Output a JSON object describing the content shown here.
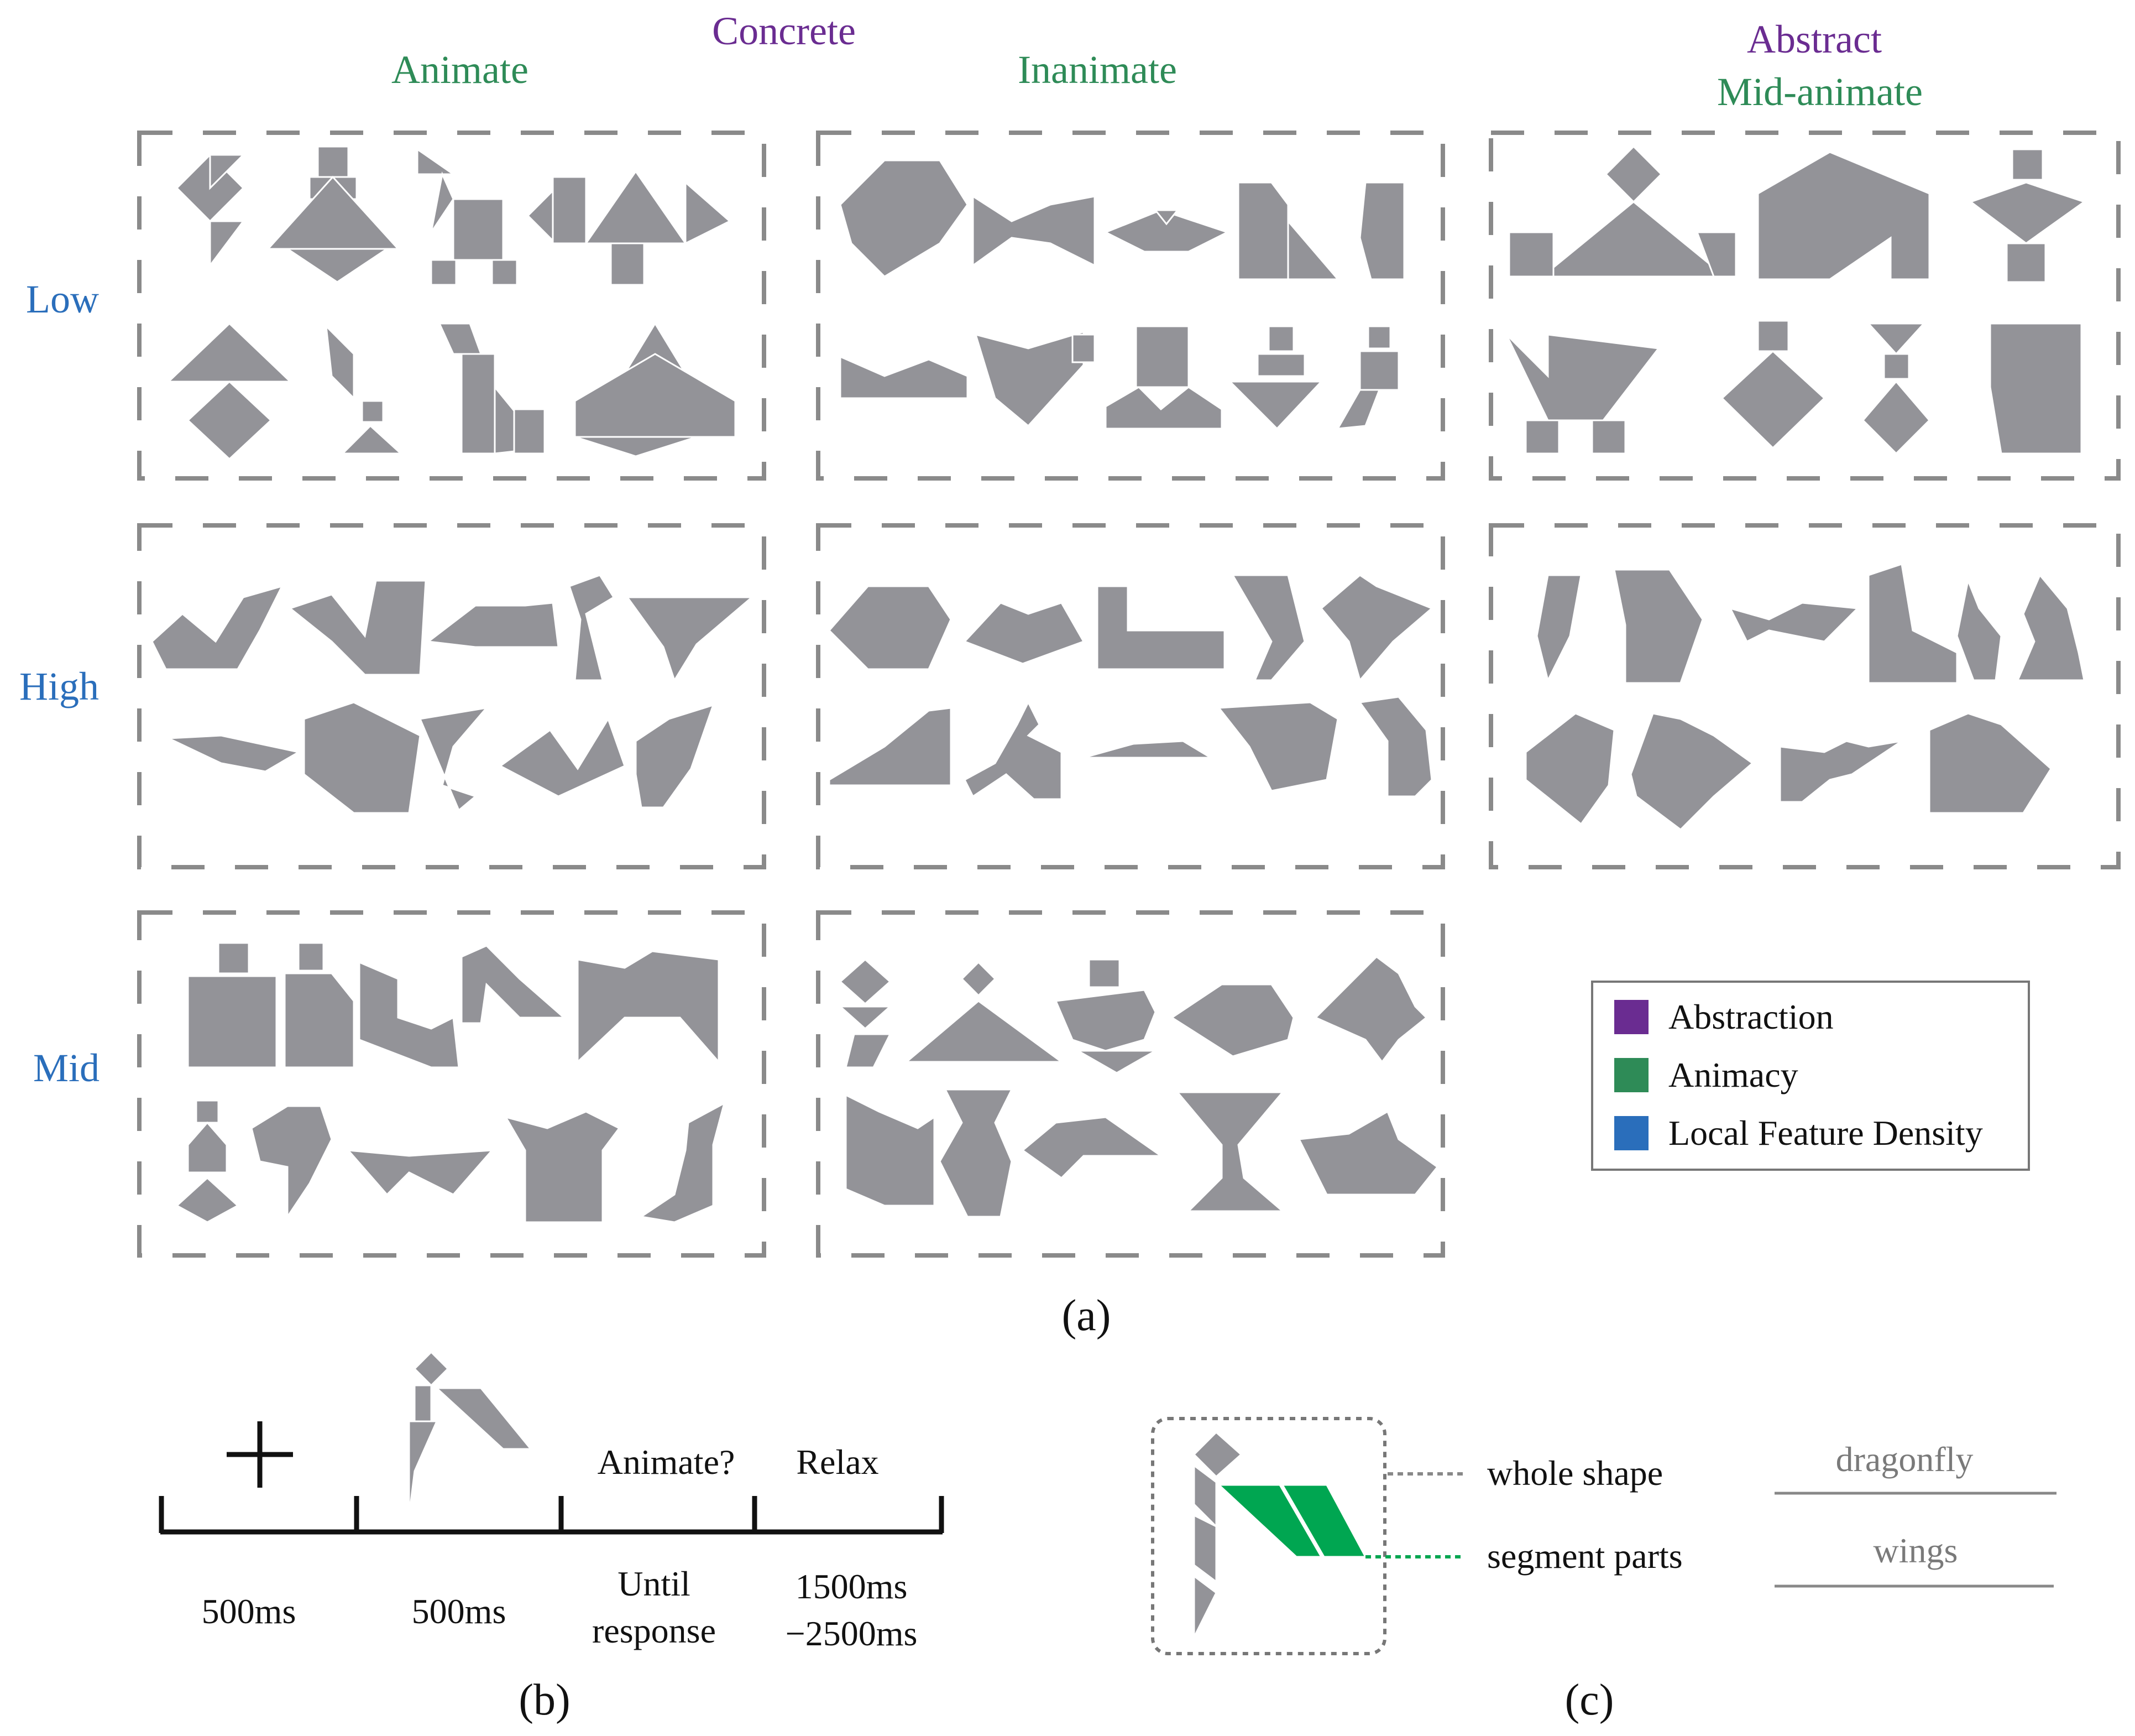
{
  "colors": {
    "abstraction": "#6a2c91",
    "animacy": "#2e8b57",
    "density": "#2a6ebb",
    "shape_fill": "#939398",
    "dash": "#8a8a8a",
    "highlight": "#00a651",
    "text": "#111111",
    "gray_text": "#7a7a7a"
  },
  "header": {
    "concrete": "Concrete",
    "animate": "Animate",
    "inanimate": "Inanimate",
    "abstract": "Abstract",
    "mid_animate": "Mid-animate"
  },
  "rows": {
    "low": "Low",
    "high": "High",
    "mid": "Mid"
  },
  "legend": {
    "items": [
      {
        "label": "Abstraction",
        "color": "#6a2c91"
      },
      {
        "label": "Animacy",
        "color": "#2e8b57"
      },
      {
        "label": "Local Feature Density",
        "color": "#2a6ebb"
      }
    ]
  },
  "captions": {
    "a": "(a)",
    "b": "(b)",
    "c": "(c)"
  },
  "timeline": {
    "prompt": "Animate?",
    "relax": "Relax",
    "durations": {
      "fixation": "500ms",
      "stimulus": "500ms",
      "until_1": "Until",
      "until_2": "response",
      "iti_1": "1500ms",
      "iti_2": "−2500ms"
    }
  },
  "annotation": {
    "whole_shape": "whole shape",
    "segment_parts": "segment parts",
    "whole_answer": "dragonfly",
    "segment_answer": "wings"
  }
}
